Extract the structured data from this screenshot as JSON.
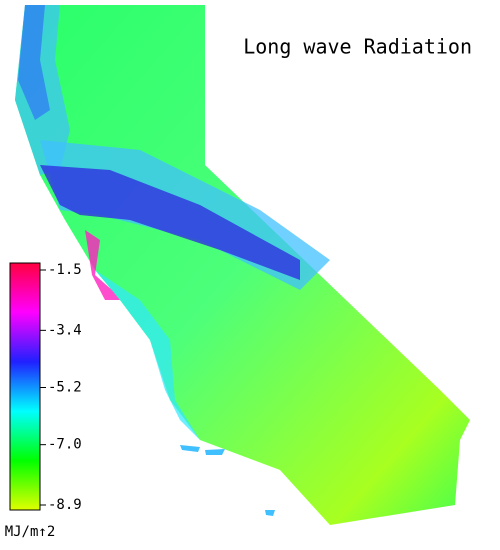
{
  "title": "Long wave Radiation",
  "colorbar": {
    "ticks": [
      -1.5,
      -3.4,
      -5.2,
      {
        "value": -7,
        "label": "-7.0"
      },
      -8.9
    ],
    "unit": "MJ/m↑2"
  }
}
